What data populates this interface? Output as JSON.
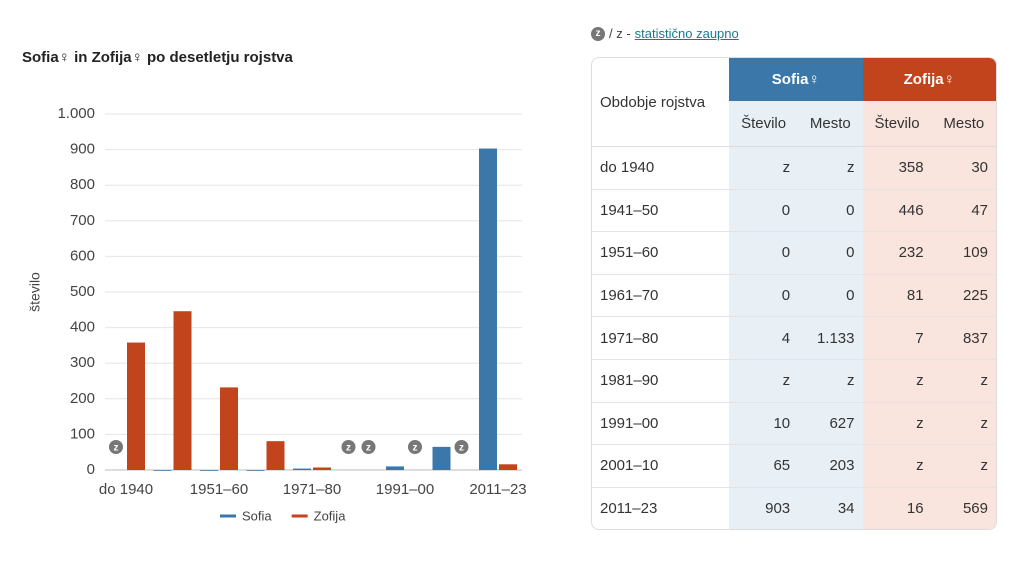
{
  "chart_data": {
    "type": "bar",
    "title": "Sofia♀ in Zofija♀ po desetletju rojstva",
    "y_label": "število",
    "categories": [
      "do 1940",
      null,
      "1951–60",
      null,
      "1971–80",
      null,
      "1991–00",
      null,
      "2011–23"
    ],
    "series": [
      {
        "name": "Sofia",
        "color": "#3b77a8",
        "values": [
          null,
          0,
          0,
          0,
          4,
          null,
          10,
          65,
          903
        ]
      },
      {
        "name": "Zofija",
        "color": "#c1441c",
        "values": [
          358,
          446,
          232,
          81,
          7,
          null,
          null,
          null,
          16
        ]
      }
    ],
    "confidential_marker": "z",
    "ylim": [
      0,
      1000
    ],
    "yticks": [
      0,
      100,
      200,
      300,
      400,
      500,
      600,
      700,
      800,
      900,
      {
        "value": 1000,
        "label": "1.000"
      }
    ],
    "grid": true,
    "legend": "bottom"
  },
  "table": {
    "note": {
      "icon": "z",
      "text": "/ z -",
      "link": "statistično zaupno"
    },
    "corner": "Obdobje rojstva",
    "groups": [
      "Sofia♀",
      "Zofija♀"
    ],
    "subheaders": [
      "Število",
      "Mesto",
      "Število",
      "Mesto"
    ],
    "rows": [
      [
        "do 1940",
        "z",
        "z",
        "358",
        "30"
      ],
      [
        "1941–50",
        "0",
        "0",
        "446",
        "47"
      ],
      [
        "1951–60",
        "0",
        "0",
        "232",
        "109"
      ],
      [
        "1961–70",
        "0",
        "0",
        "81",
        "225"
      ],
      [
        "1971–80",
        "4",
        "1.133",
        "7",
        "837"
      ],
      [
        "1981–90",
        "z",
        "z",
        "z",
        "z"
      ],
      [
        "1991–00",
        "10",
        "627",
        "z",
        "z"
      ],
      [
        "2001–10",
        "65",
        "203",
        "z",
        "z"
      ],
      [
        "2011–23",
        "903",
        "34",
        "16",
        "569"
      ]
    ]
  }
}
